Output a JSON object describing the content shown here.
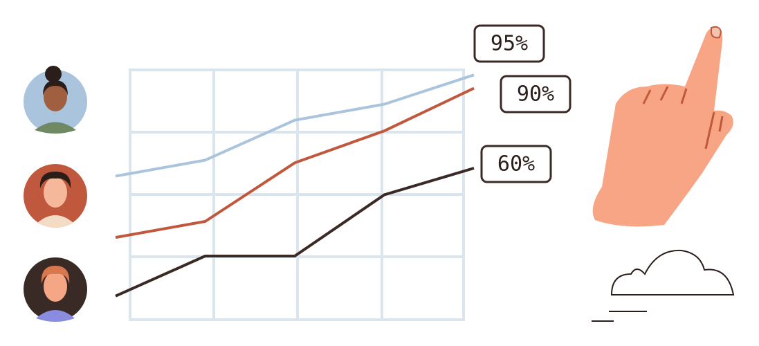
{
  "chart_data": {
    "type": "line",
    "categories": [
      null,
      null,
      null,
      null,
      null
    ],
    "ylim": [
      0,
      100
    ],
    "series": [
      {
        "color": "#a9c4dc",
        "values": [
          57,
          63,
          78,
          84,
          95
        ],
        "value_labels": [
          null,
          null,
          null,
          null,
          "95%"
        ]
      },
      {
        "color": "#c0583d",
        "values": [
          34,
          40,
          62,
          74,
          90
        ],
        "value_labels": [
          null,
          null,
          null,
          null,
          "90%"
        ]
      },
      {
        "color": "#3a2a26",
        "values": [
          12,
          27,
          27,
          50,
          60
        ],
        "value_labels": [
          null,
          null,
          null,
          null,
          "60%"
        ]
      }
    ]
  }
}
